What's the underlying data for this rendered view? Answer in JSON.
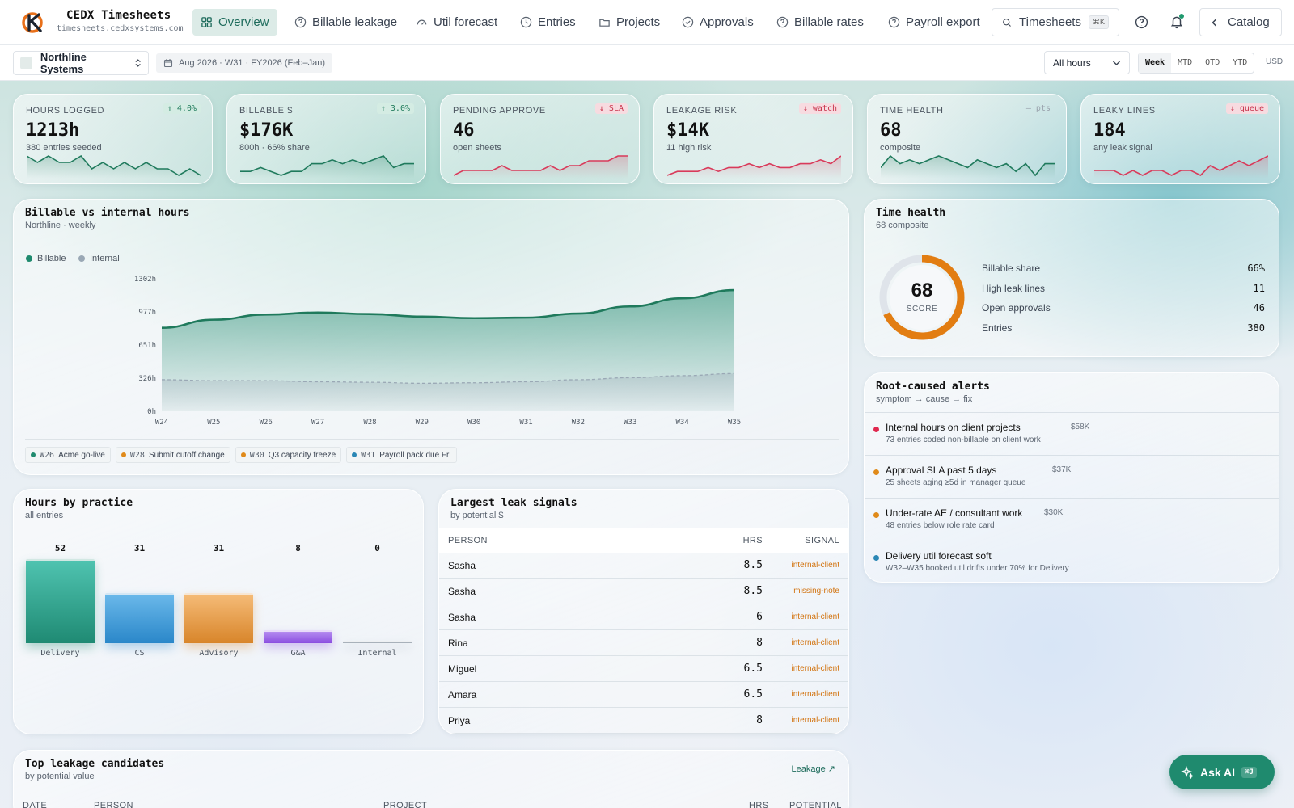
{
  "app": {
    "title": "CEDX Timesheets",
    "subtitle": "timesheets.cedxsystems.com"
  },
  "nav": [
    {
      "label": "Overview",
      "icon": "grid-icon",
      "active": true
    },
    {
      "label": "Billable leakage",
      "icon": "help-circle-icon"
    },
    {
      "label": "Util forecast",
      "icon": "gauge-icon"
    },
    {
      "label": "Entries",
      "icon": "clock-icon"
    },
    {
      "label": "Projects",
      "icon": "folder-icon"
    },
    {
      "label": "Approvals",
      "icon": "check-circle-icon"
    },
    {
      "label": "Billable rates",
      "icon": "help-circle-icon"
    },
    {
      "label": "Payroll export",
      "icon": "help-circle-icon"
    }
  ],
  "search": {
    "label": "Timesheets",
    "shortcut": "⌘K"
  },
  "catalog_label": "Catalog",
  "toolbar": {
    "org": "Northline Systems",
    "period": "Aug 2026 · W31 · FY2026 (Feb–Jan)",
    "hours_filter": "All hours",
    "ranges": [
      "Week",
      "MTD",
      "QTD",
      "YTD"
    ],
    "active_range": "Week",
    "currency": "USD"
  },
  "kpis": [
    {
      "label": "HOURS LOGGED",
      "value": "1213h",
      "sub": "380 entries seeded",
      "badge": "↑ 4.0%",
      "trend": "up",
      "spark": [
        6,
        5,
        6,
        5,
        5,
        6,
        4,
        5,
        4,
        5,
        4,
        5,
        4,
        4,
        3,
        4,
        3
      ],
      "color": "#1f7a5c"
    },
    {
      "label": "BILLABLE $",
      "value": "$176K",
      "sub": "800h · 66% share",
      "badge": "↑ 3.0%",
      "trend": "up",
      "spark": [
        3,
        3,
        4,
        3,
        2,
        3,
        3,
        5,
        5,
        6,
        5,
        6,
        5,
        6,
        7,
        4,
        5,
        5
      ],
      "color": "#1f7a5c"
    },
    {
      "label": "PENDING APPROVE",
      "value": "46",
      "sub": "open sheets",
      "badge": "↓ SLA",
      "trend": "down",
      "spark": [
        2,
        3,
        3,
        3,
        3,
        4,
        3,
        3,
        3,
        3,
        4,
        3,
        4,
        4,
        5,
        5,
        5,
        6,
        6
      ],
      "color": "#d93a5a"
    },
    {
      "label": "LEAKAGE RISK",
      "value": "$14K",
      "sub": "11 high risk",
      "badge": "↓ watch",
      "trend": "down",
      "spark": [
        2,
        3,
        3,
        3,
        4,
        3,
        4,
        4,
        5,
        4,
        5,
        4,
        4,
        5,
        5,
        6,
        5,
        7
      ],
      "color": "#d93a5a"
    },
    {
      "label": "TIME HEALTH",
      "value": "68",
      "sub": "composite",
      "badge": "— pts",
      "trend": "none",
      "spark": [
        4,
        7,
        5,
        6,
        5,
        6,
        7,
        6,
        5,
        4,
        6,
        5,
        4,
        5,
        3,
        5,
        2,
        5,
        5
      ],
      "color": "#1f7a5c"
    },
    {
      "label": "LEAKY LINES",
      "value": "184",
      "sub": "any leak signal",
      "badge": "↓ queue",
      "trend": "down",
      "spark": [
        3,
        3,
        3,
        2,
        3,
        2,
        3,
        3,
        2,
        3,
        3,
        2,
        4,
        3,
        4,
        5,
        4,
        5,
        6
      ],
      "color": "#d93a5a"
    }
  ],
  "billable_chart": {
    "title": "Billable vs internal hours",
    "subtitle": "Northline · weekly",
    "legend": [
      "Billable",
      "Internal"
    ],
    "milestones": [
      {
        "week": "W26",
        "label": "Acme go-live",
        "color": "#1f8a6e"
      },
      {
        "week": "W28",
        "label": "Submit cutoff change",
        "color": "#e08a1a"
      },
      {
        "week": "W30",
        "label": "Q3 capacity freeze",
        "color": "#e08a1a"
      },
      {
        "week": "W31",
        "label": "Payroll pack due Fri",
        "color": "#2a87b5"
      }
    ]
  },
  "chart_data": {
    "type": "area",
    "x": [
      "W24",
      "W25",
      "W26",
      "W27",
      "W28",
      "W29",
      "W30",
      "W31",
      "W32",
      "W33",
      "W34",
      "W35"
    ],
    "yticks": [
      "0h",
      "326h",
      "651h",
      "977h",
      "1302h"
    ],
    "ylim": [
      0,
      1302
    ],
    "series": [
      {
        "name": "Billable",
        "values": [
          820,
          900,
          950,
          970,
          955,
          930,
          915,
          920,
          960,
          1030,
          1110,
          1190
        ],
        "color": "#1f7a5c"
      },
      {
        "name": "Internal",
        "values": [
          310,
          300,
          300,
          290,
          285,
          275,
          280,
          290,
          310,
          330,
          350,
          370
        ],
        "color": "#9aa8b5"
      }
    ]
  },
  "health": {
    "title": "Time health",
    "subtitle": "68 composite",
    "score": "68",
    "score_label": "SCORE",
    "score_value": 68,
    "rows": [
      {
        "label": "Billable share",
        "value": "66%"
      },
      {
        "label": "High leak lines",
        "value": "11"
      },
      {
        "label": "Open approvals",
        "value": "46"
      },
      {
        "label": "Entries",
        "value": "380"
      }
    ]
  },
  "alerts": {
    "title": "Root-caused alerts",
    "subtitle": "symptom → cause → fix",
    "items": [
      {
        "title": "Internal hours on client projects",
        "amount": "$58K",
        "sub": "73 entries coded non-billable on client work",
        "color": "#e0284e"
      },
      {
        "title": "Approval SLA past 5 days",
        "amount": "$37K",
        "sub": "25 sheets aging ≥5d in manager queue",
        "color": "#e08a1a"
      },
      {
        "title": "Under-rate AE / consultant work",
        "amount": "$30K",
        "sub": "48 entries below role rate card",
        "color": "#e08a1a"
      },
      {
        "title": "Delivery util forecast soft",
        "amount": "",
        "sub": "W32–W35 booked util drifts under 70% for Delivery",
        "color": "#2a87b5"
      }
    ]
  },
  "practice": {
    "title": "Hours by practice",
    "subtitle": "all entries",
    "bars": [
      {
        "label": "Delivery",
        "value": 52,
        "top": "#4fc3b0",
        "bottom": "#1f8a73"
      },
      {
        "label": "CS",
        "value": 31,
        "top": "#6ab8ea",
        "bottom": "#2a87c9"
      },
      {
        "label": "Advisory",
        "value": 31,
        "top": "#f5bb77",
        "bottom": "#d8852a"
      },
      {
        "label": "G&A",
        "value": 8,
        "top": "#b58cf0",
        "bottom": "#8a4de0"
      },
      {
        "label": "Internal",
        "value": 0,
        "top": "#b8c0c8",
        "bottom": "#98a2ac"
      }
    ]
  },
  "leak_signals": {
    "title": "Largest leak signals",
    "subtitle": "by potential $",
    "headers": [
      "PERSON",
      "HRS",
      "SIGNAL"
    ],
    "rows": [
      {
        "person": "Sasha",
        "hrs": "8.5",
        "signal": "internal-client"
      },
      {
        "person": "Sasha",
        "hrs": "8.5",
        "signal": "missing-note"
      },
      {
        "person": "Sasha",
        "hrs": "6",
        "signal": "internal-client"
      },
      {
        "person": "Rina",
        "hrs": "8",
        "signal": "internal-client"
      },
      {
        "person": "Miguel",
        "hrs": "6.5",
        "signal": "internal-client"
      },
      {
        "person": "Amara",
        "hrs": "6.5",
        "signal": "internal-client"
      },
      {
        "person": "Priya",
        "hrs": "8",
        "signal": "internal-client"
      }
    ]
  },
  "candidates": {
    "title": "Top leakage candidates",
    "subtitle": "by potential value",
    "link": "Leakage ↗",
    "headers": [
      "DATE",
      "PERSON",
      "PROJECT",
      "HRS",
      "POTENTIAL"
    ]
  },
  "ask_ai": {
    "label": "Ask AI",
    "shortcut": "⌘J"
  }
}
